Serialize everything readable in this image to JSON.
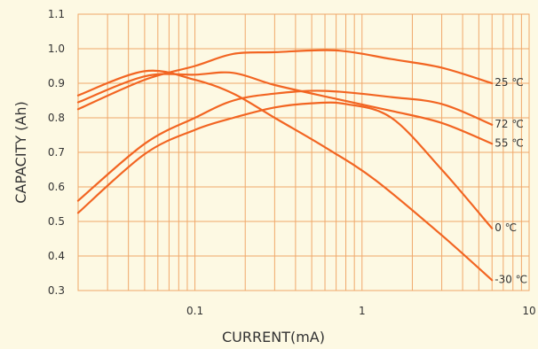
{
  "chart_data": {
    "type": "line",
    "xlabel": "CURRENT(mA)",
    "ylabel": "CAPACITY (Ah)",
    "x_scale": "log",
    "xlim": [
      0.02,
      10
    ],
    "ylim": [
      0.3,
      1.1
    ],
    "x_ticks": [
      {
        "value": 0.1,
        "label": "0.1"
      },
      {
        "value": 1,
        "label": "1"
      },
      {
        "value": 10,
        "label": "10"
      }
    ],
    "y_ticks": [
      {
        "value": 0.3,
        "label": "0.3"
      },
      {
        "value": 0.4,
        "label": "0.4"
      },
      {
        "value": 0.5,
        "label": "0.5"
      },
      {
        "value": 0.6,
        "label": "0.6"
      },
      {
        "value": 0.7,
        "label": "0.7"
      },
      {
        "value": 0.8,
        "label": "0.8"
      },
      {
        "value": 0.9,
        "label": "0.9"
      },
      {
        "value": 1.0,
        "label": "1.0"
      },
      {
        "value": 1.1,
        "label": "1.1"
      }
    ],
    "grid": true,
    "colors": {
      "line": "#f26522",
      "grid": "#f0a86a",
      "background": "#fdf9e3"
    },
    "series": [
      {
        "name": "25 ℃",
        "points": [
          [
            0.02,
            0.825
          ],
          [
            0.05,
            0.91
          ],
          [
            0.1,
            0.95
          ],
          [
            0.17,
            0.985
          ],
          [
            0.3,
            0.99
          ],
          [
            0.7,
            0.995
          ],
          [
            1.5,
            0.97
          ],
          [
            3,
            0.945
          ],
          [
            6,
            0.9
          ]
        ]
      },
      {
        "name": "55 ℃",
        "points": [
          [
            0.02,
            0.845
          ],
          [
            0.05,
            0.92
          ],
          [
            0.1,
            0.925
          ],
          [
            0.17,
            0.93
          ],
          [
            0.3,
            0.895
          ],
          [
            0.7,
            0.855
          ],
          [
            1.5,
            0.82
          ],
          [
            3,
            0.785
          ],
          [
            6,
            0.725
          ]
        ]
      },
      {
        "name": "72 ℃",
        "points": [
          [
            0.02,
            0.56
          ],
          [
            0.05,
            0.725
          ],
          [
            0.1,
            0.8
          ],
          [
            0.17,
            0.85
          ],
          [
            0.3,
            0.87
          ],
          [
            0.6,
            0.878
          ],
          [
            1.5,
            0.86
          ],
          [
            3,
            0.84
          ],
          [
            6,
            0.78
          ]
        ]
      },
      {
        "name": "0 ℃",
        "points": [
          [
            0.02,
            0.525
          ],
          [
            0.05,
            0.695
          ],
          [
            0.1,
            0.765
          ],
          [
            0.17,
            0.8
          ],
          [
            0.3,
            0.83
          ],
          [
            0.5,
            0.842
          ],
          [
            0.8,
            0.84
          ],
          [
            1.5,
            0.8
          ],
          [
            3,
            0.65
          ],
          [
            6,
            0.48
          ]
        ]
      },
      {
        "name": "-30 ℃",
        "points": [
          [
            0.02,
            0.865
          ],
          [
            0.05,
            0.935
          ],
          [
            0.1,
            0.91
          ],
          [
            0.17,
            0.87
          ],
          [
            0.3,
            0.8
          ],
          [
            0.6,
            0.715
          ],
          [
            1.2,
            0.62
          ],
          [
            3,
            0.46
          ],
          [
            6,
            0.33
          ]
        ]
      }
    ]
  }
}
